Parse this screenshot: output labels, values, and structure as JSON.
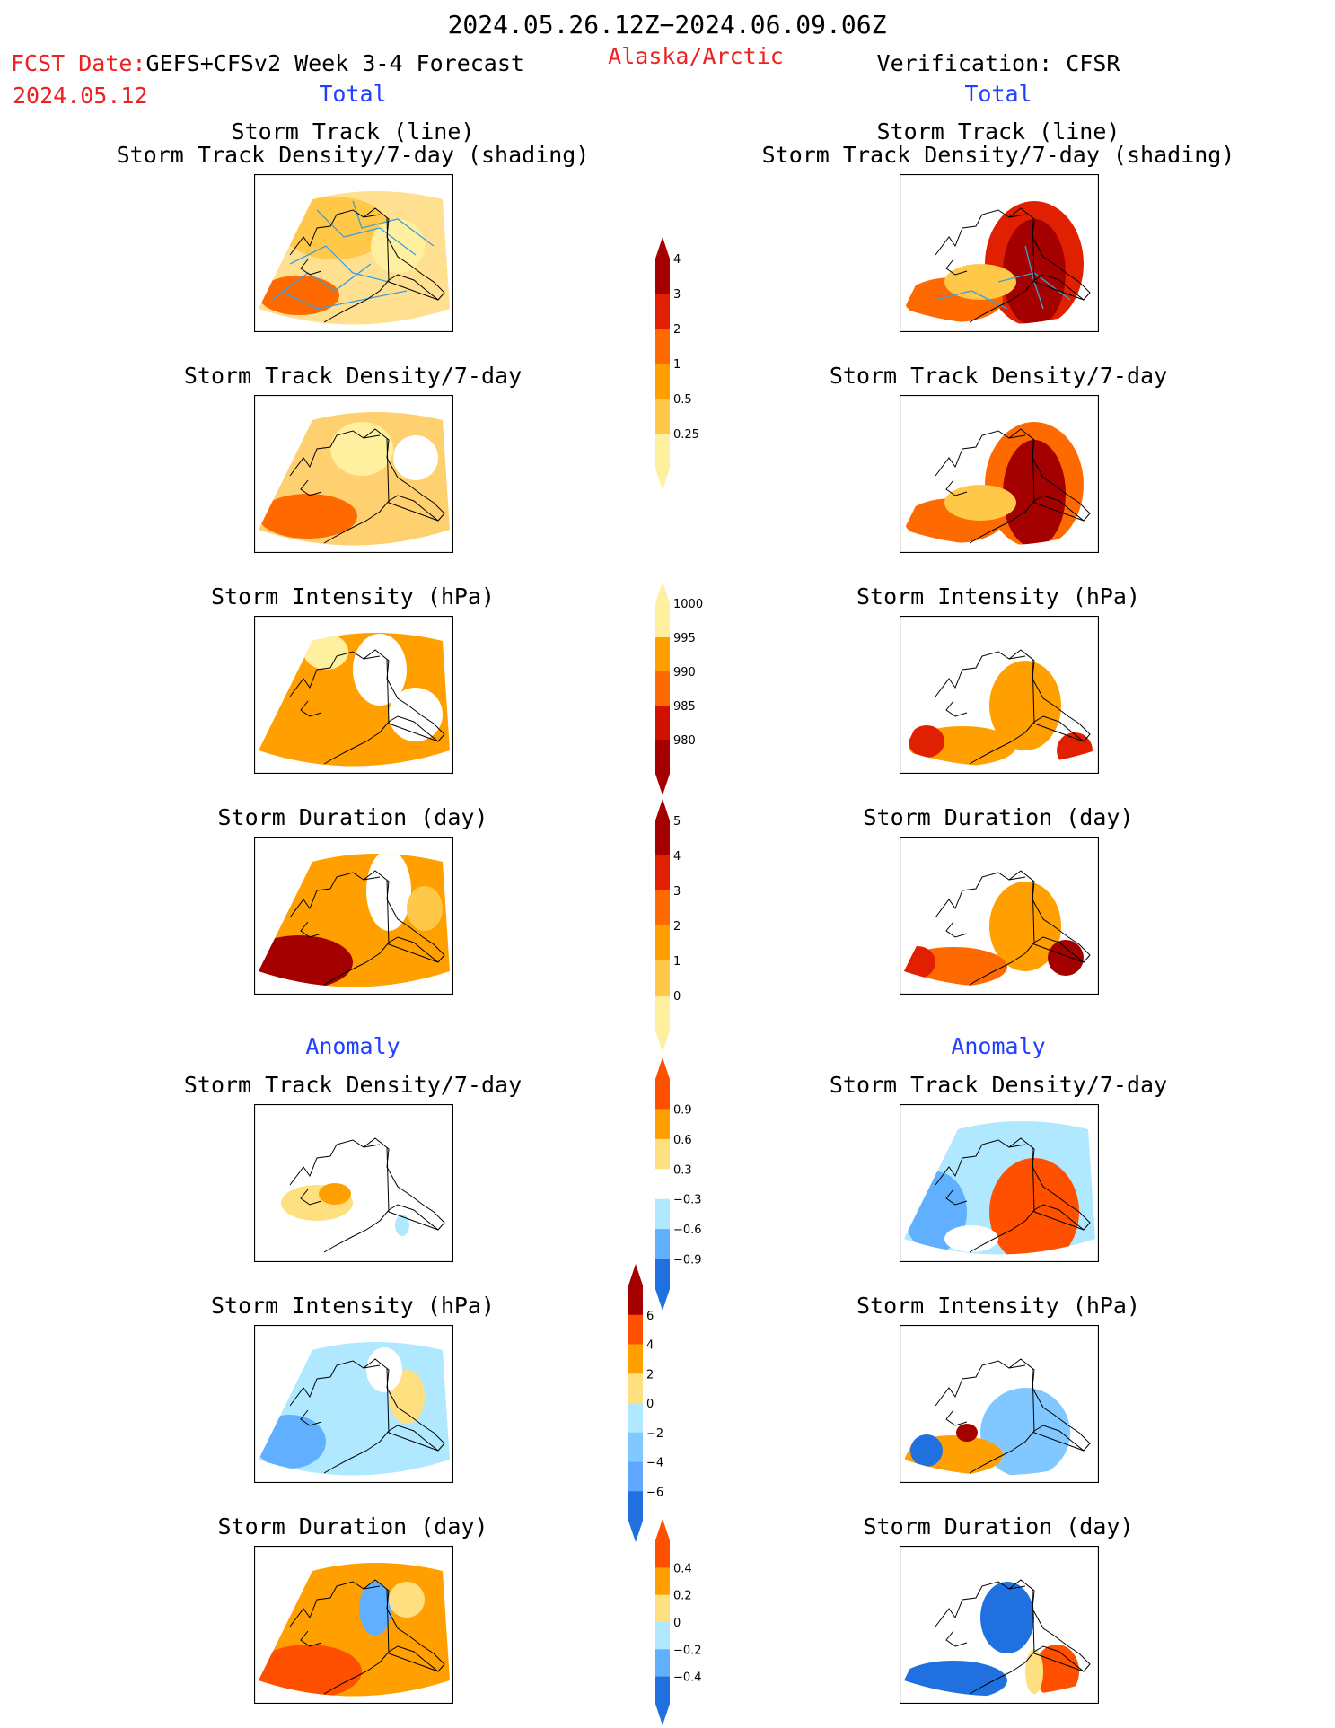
{
  "header": {
    "period": "2024.05.26.12Z−2024.06.09.06Z",
    "fcst_label": "FCST Date:",
    "fcst_model": "GEFS+CFSv2 Week 3-4 Forecast",
    "fcst_date": "2024.05.12",
    "region": "Alaska/Arctic",
    "verification": "Verification: CFSR"
  },
  "columns": {
    "left_total": "Total",
    "right_total": "Total",
    "left_anomaly": "Anomaly",
    "right_anomaly": "Anomaly"
  },
  "titles": {
    "track_line": "Storm Track (line)",
    "track_shading": "Storm Track Density/7-day (shading)",
    "density": "Storm Track Density/7-day",
    "intensity": "Storm Intensity (hPa)",
    "duration": "Storm Duration (day)"
  },
  "colorbars": [
    {
      "labels": [
        "4",
        "3",
        "2",
        "1",
        "0.5",
        "0.25"
      ],
      "colors": [
        "#a50000",
        "#e02000",
        "#ff6a00",
        "#ffa000",
        "#ffc848",
        "#fff0a0"
      ]
    },
    {
      "labels": [
        "1000",
        "995",
        "990",
        "985",
        "980"
      ],
      "colors": [
        "#fff0a0",
        "#ffa000",
        "#ff6a00",
        "#d01000",
        "#a50000"
      ]
    },
    {
      "labels": [
        "5",
        "4",
        "3",
        "2",
        "1",
        "0"
      ],
      "colors": [
        "#a50000",
        "#e02000",
        "#ff6a00",
        "#ffa000",
        "#ffc848",
        "#fff0a0"
      ]
    },
    {
      "labels": [
        "0.9",
        "0.6",
        "0.3",
        "−0.3",
        "−0.6",
        "−0.9"
      ],
      "colors": [
        "#ff5000",
        "#ffa000",
        "#ffe080",
        "#ffffff",
        "#b0e8ff",
        "#60b0ff",
        "#2070e0"
      ]
    },
    {
      "labels": [
        "6",
        "4",
        "2",
        "0",
        "−2",
        "−4",
        "−6"
      ],
      "colors": [
        "#a50000",
        "#ff5000",
        "#ffa000",
        "#ffe080",
        "#b0e8ff",
        "#80c8ff",
        "#60a8ff",
        "#2070e0"
      ]
    },
    {
      "labels": [
        "0.4",
        "0.2",
        "0",
        "−0.2",
        "−0.4"
      ],
      "colors": [
        "#ff5000",
        "#ffa000",
        "#ffe080",
        "#b0e8ff",
        "#60b0ff",
        "#2070e0"
      ]
    }
  ],
  "colors": {
    "red": "#f02020",
    "blue": "#2040ff",
    "track": "#3aa0e0"
  }
}
